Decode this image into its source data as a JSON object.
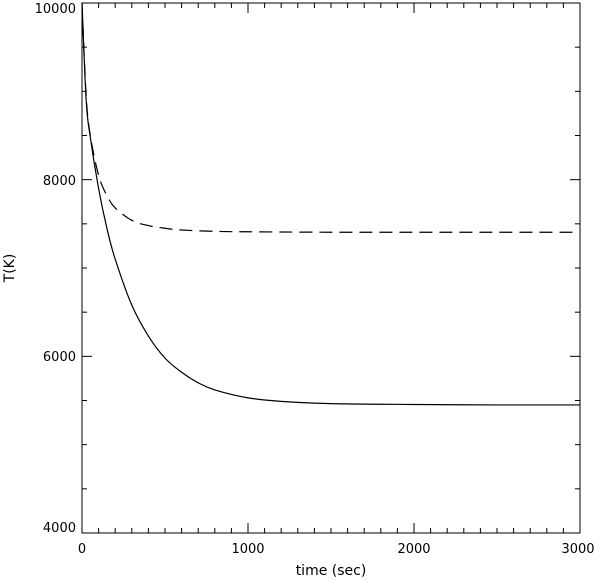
{
  "chart_data": {
    "type": "line",
    "xlabel": "time (sec)",
    "ylabel": "T(K)",
    "xlim": [
      0,
      3000
    ],
    "ylim": [
      4000,
      10000
    ],
    "x_ticks": [
      "0",
      "1000",
      "2000",
      "3000"
    ],
    "y_ticks": [
      "4000",
      "6000",
      "8000",
      "10000"
    ],
    "grid": false,
    "legend": "none",
    "series": [
      {
        "style": "dashed",
        "x": [
          0,
          25,
          50,
          100,
          150,
          200,
          300,
          400,
          500,
          600,
          800,
          1000,
          1500,
          2000,
          2500,
          3000
        ],
        "y": [
          10000,
          8950,
          8500,
          8050,
          7820,
          7680,
          7540,
          7480,
          7450,
          7430,
          7415,
          7410,
          7405,
          7405,
          7405,
          7405
        ]
      },
      {
        "style": "solid",
        "x": [
          0,
          25,
          50,
          100,
          150,
          200,
          300,
          400,
          500,
          600,
          700,
          800,
          1000,
          1200,
          1500,
          2000,
          2500,
          3000
        ],
        "y": [
          10000,
          8900,
          8480,
          7900,
          7450,
          7100,
          6580,
          6230,
          5980,
          5820,
          5700,
          5620,
          5530,
          5490,
          5465,
          5455,
          5450,
          5450
        ]
      }
    ]
  }
}
